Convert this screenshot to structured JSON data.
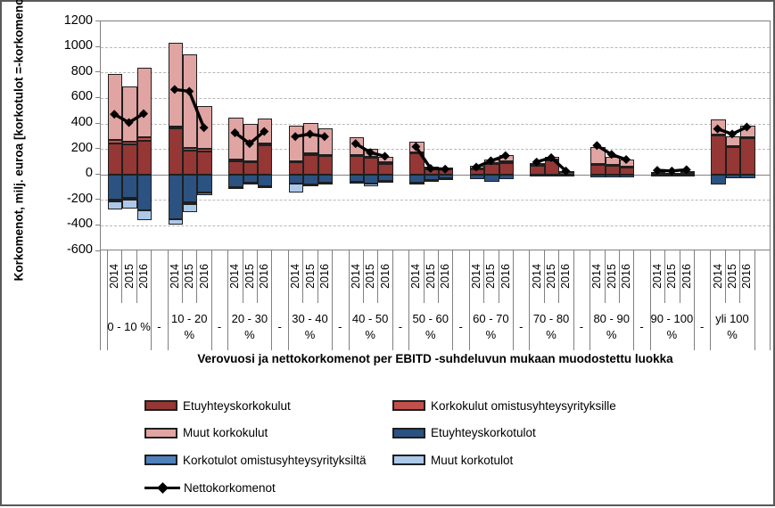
{
  "chart_data": {
    "type": "bar",
    "subtype": "stacked-bars-with-net-line",
    "title": "",
    "ylabel": "Korkomenot, milj. euroa [korkotulot =-korkomenot]",
    "xlabel": "Verovuosi ja nettokorkomenot per EBITD -suhdeluvun mukaan muodostettu luokka",
    "ylim": [
      -600,
      1200
    ],
    "ytick_step": 200,
    "yticks": [
      1200,
      1000,
      800,
      600,
      400,
      200,
      0,
      -200,
      -400,
      -600
    ],
    "grid": "horizontal-dashed",
    "years": [
      "2014",
      "2015",
      "2016"
    ],
    "separator_label": "-",
    "categories": [
      "0 - 10 %",
      "10 - 20 %",
      "20 - 30 %",
      "30 - 40 %",
      "40 - 50 %",
      "50 - 60 %",
      "60 - 70 %",
      "70 - 80 %",
      "80 - 90 %",
      "90 - 100 %",
      "yli 100 %"
    ],
    "colors": {
      "etuyhteyskorkokulut": "#943735",
      "korkokulut_omistus": "#C0504D",
      "muut_korkokulut": "#E0A4A2",
      "etuyhteyskorkotulot": "#2B5280",
      "korkotulot_omistus": "#4F81BD",
      "muut_korkotulot": "#ADC9E9",
      "nettokorkomenot": "#000000"
    },
    "stack_order_positive": [
      "etuyhteyskorkokulut",
      "korkokulut_omistus",
      "muut_korkokulut"
    ],
    "stack_order_negative": [
      "etuyhteyskorkotulot",
      "korkotulot_omistus",
      "muut_korkotulot"
    ],
    "legend": {
      "left_column": [
        {
          "field": "etuyhteyskorkokulut",
          "label": "Etuyhteyskorkokulut",
          "type": "box",
          "color": "#943735"
        },
        {
          "field": "muut_korkokulut",
          "label": "Muut korkokulut",
          "type": "box",
          "color": "#E0A4A2"
        },
        {
          "field": "korkotulot_omistus",
          "label": "Korkotulot omistusyhteysyrityksiltä",
          "type": "box",
          "color": "#4F81BD"
        },
        {
          "field": "nettokorkomenot",
          "label": "Nettokorkomenot",
          "type": "line",
          "color": "#000000"
        }
      ],
      "right_column": [
        {
          "field": "korkokulut_omistus",
          "label": "Korkokulut omistusyhteysyrityksille",
          "type": "box",
          "color": "#C0504D"
        },
        {
          "field": "etuyhteyskorkotulot",
          "label": "Etuyhteyskorkotulot",
          "type": "box",
          "color": "#2B5280"
        },
        {
          "field": "muut_korkotulot",
          "label": "Muut korkotulot",
          "type": "box",
          "color": "#ADC9E9"
        }
      ]
    },
    "groups": [
      {
        "category": "0 - 10 %",
        "bars": [
          {
            "year": "2014",
            "etuyhteyskorkokulut": 240,
            "korkokulut_omistus": 30,
            "muut_korkokulut": 520,
            "etuyhteyskorkotulot": -200,
            "korkotulot_omistus": -15,
            "muut_korkotulot": -60,
            "nettokorkomenot": 465
          },
          {
            "year": "2015",
            "etuyhteyskorkokulut": 235,
            "korkokulut_omistus": 20,
            "muut_korkokulut": 435,
            "etuyhteyskorkotulot": -185,
            "korkotulot_omistus": -10,
            "muut_korkotulot": -70,
            "nettokorkomenot": 400
          },
          {
            "year": "2016",
            "etuyhteyskorkokulut": 265,
            "korkokulut_omistus": 30,
            "muut_korkokulut": 545,
            "etuyhteyskorkotulot": -280,
            "korkotulot_omistus": 0,
            "muut_korkotulot": -80,
            "nettokorkomenot": 470
          }
        ]
      },
      {
        "category": "10 - 20 %",
        "bars": [
          {
            "year": "2014",
            "etuyhteyskorkokulut": 365,
            "korkokulut_omistus": 10,
            "muut_korkokulut": 660,
            "etuyhteyskorkotulot": -350,
            "korkotulot_omistus": 0,
            "muut_korkotulot": -45,
            "nettokorkomenot": 660
          },
          {
            "year": "2015",
            "etuyhteyskorkokulut": 185,
            "korkokulut_omistus": 20,
            "muut_korkokulut": 735,
            "etuyhteyskorkotulot": -220,
            "korkotulot_omistus": -10,
            "muut_korkotulot": -65,
            "nettokorkomenot": 645
          },
          {
            "year": "2016",
            "etuyhteyskorkokulut": 180,
            "korkokulut_omistus": 20,
            "muut_korkokulut": 335,
            "etuyhteyskorkotulot": -140,
            "korkotulot_omistus": -20,
            "muut_korkotulot": 0,
            "nettokorkomenot": 360
          }
        ]
      },
      {
        "category": "20 - 30 %",
        "bars": [
          {
            "year": "2014",
            "etuyhteyskorkokulut": 105,
            "korkokulut_omistus": 10,
            "muut_korkokulut": 330,
            "etuyhteyskorkotulot": -100,
            "korkotulot_omistus": 0,
            "muut_korkotulot": -15,
            "nettokorkomenot": 320
          },
          {
            "year": "2015",
            "etuyhteyskorkokulut": 95,
            "korkokulut_omistus": 10,
            "muut_korkokulut": 290,
            "etuyhteyskorkotulot": -65,
            "korkotulot_omistus": 0,
            "muut_korkotulot": -10,
            "nettokorkomenot": 235
          },
          {
            "year": "2016",
            "etuyhteyskorkokulut": 230,
            "korkokulut_omistus": 10,
            "muut_korkokulut": 195,
            "etuyhteyskorkotulot": -90,
            "korkotulot_omistus": 0,
            "muut_korkotulot": -10,
            "nettokorkomenot": 330
          }
        ]
      },
      {
        "category": "30 - 40 %",
        "bars": [
          {
            "year": "2014",
            "etuyhteyskorkokulut": 95,
            "korkokulut_omistus": 10,
            "muut_korkokulut": 280,
            "etuyhteyskorkotulot": -75,
            "korkotulot_omistus": 0,
            "muut_korkotulot": -70,
            "nettokorkomenot": 290
          },
          {
            "year": "2015",
            "etuyhteyskorkokulut": 155,
            "korkokulut_omistus": 10,
            "muut_korkokulut": 240,
            "etuyhteyskorkotulot": -80,
            "korkotulot_omistus": 0,
            "muut_korkotulot": -15,
            "nettokorkomenot": 310
          },
          {
            "year": "2016",
            "etuyhteyskorkokulut": 145,
            "korkokulut_omistus": 10,
            "muut_korkokulut": 210,
            "etuyhteyskorkotulot": -65,
            "korkotulot_omistus": 0,
            "muut_korkotulot": -10,
            "nettokorkomenot": 290
          }
        ]
      },
      {
        "category": "40 - 50 %",
        "bars": [
          {
            "year": "2014",
            "etuyhteyskorkokulut": 145,
            "korkokulut_omistus": 10,
            "muut_korkokulut": 135,
            "etuyhteyskorkotulot": -55,
            "korkotulot_omistus": 0,
            "muut_korkotulot": -20,
            "nettokorkomenot": 235
          },
          {
            "year": "2015",
            "etuyhteyskorkokulut": 130,
            "korkokulut_omistus": 10,
            "muut_korkokulut": 60,
            "etuyhteyskorkotulot": -70,
            "korkotulot_omistus": 0,
            "muut_korkotulot": -20,
            "nettokorkomenot": 165
          },
          {
            "year": "2016",
            "etuyhteyskorkokulut": 85,
            "korkokulut_omistus": 10,
            "muut_korkokulut": 45,
            "etuyhteyskorkotulot": -50,
            "korkotulot_omistus": 0,
            "muut_korkotulot": -15,
            "nettokorkomenot": 135
          }
        ]
      },
      {
        "category": "50 - 60 %",
        "bars": [
          {
            "year": "2014",
            "etuyhteyskorkokulut": 165,
            "korkokulut_omistus": 10,
            "muut_korkokulut": 80,
            "etuyhteyskorkotulot": -65,
            "korkotulot_omistus": 0,
            "muut_korkotulot": -15,
            "nettokorkomenot": 210
          },
          {
            "year": "2015",
            "etuyhteyskorkokulut": 45,
            "korkokulut_omistus": 5,
            "muut_korkokulut": 10,
            "etuyhteyskorkotulot": -45,
            "korkotulot_omistus": 0,
            "muut_korkotulot": -10,
            "nettokorkomenot": 40
          },
          {
            "year": "2016",
            "etuyhteyskorkokulut": 40,
            "korkokulut_omistus": 5,
            "muut_korkokulut": 10,
            "etuyhteyskorkotulot": -30,
            "korkotulot_omistus": 0,
            "muut_korkotulot": -10,
            "nettokorkomenot": 35
          }
        ]
      },
      {
        "category": "60 - 70 %",
        "bars": [
          {
            "year": "2014",
            "etuyhteyskorkokulut": 45,
            "korkokulut_omistus": 5,
            "muut_korkokulut": 15,
            "etuyhteyskorkotulot": -35,
            "korkotulot_omistus": 0,
            "muut_korkotulot": 0,
            "nettokorkomenot": 50
          },
          {
            "year": "2015",
            "etuyhteyskorkokulut": 80,
            "korkokulut_omistus": 10,
            "muut_korkokulut": 30,
            "etuyhteyskorkotulot": -55,
            "korkotulot_omistus": 0,
            "muut_korkotulot": 0,
            "nettokorkomenot": 100
          },
          {
            "year": "2016",
            "etuyhteyskorkokulut": 90,
            "korkokulut_omistus": 10,
            "muut_korkokulut": 50,
            "etuyhteyskorkotulot": -35,
            "korkotulot_omistus": 0,
            "muut_korkotulot": 0,
            "nettokorkomenot": 140
          }
        ]
      },
      {
        "category": "70 - 80 %",
        "bars": [
          {
            "year": "2014",
            "etuyhteyskorkokulut": 70,
            "korkokulut_omistus": 5,
            "muut_korkokulut": 15,
            "etuyhteyskorkotulot": -15,
            "korkotulot_omistus": 0,
            "muut_korkotulot": 0,
            "nettokorkomenot": 90
          },
          {
            "year": "2015",
            "etuyhteyskorkokulut": 110,
            "korkokulut_omistus": 5,
            "muut_korkokulut": 20,
            "etuyhteyskorkotulot": -15,
            "korkotulot_omistus": 0,
            "muut_korkotulot": 0,
            "nettokorkomenot": 125
          },
          {
            "year": "2016",
            "etuyhteyskorkokulut": 20,
            "korkokulut_omistus": 0,
            "muut_korkokulut": 5,
            "etuyhteyskorkotulot": -10,
            "korkotulot_omistus": 0,
            "muut_korkotulot": 0,
            "nettokorkomenot": 20
          }
        ]
      },
      {
        "category": "80 - 90 %",
        "bars": [
          {
            "year": "2014",
            "etuyhteyskorkokulut": 80,
            "korkokulut_omistus": 5,
            "muut_korkokulut": 130,
            "etuyhteyskorkotulot": -20,
            "korkotulot_omistus": 0,
            "muut_korkotulot": 0,
            "nettokorkomenot": 220
          },
          {
            "year": "2015",
            "etuyhteyskorkokulut": 70,
            "korkokulut_omistus": 5,
            "muut_korkokulut": 65,
            "etuyhteyskorkotulot": -20,
            "korkotulot_omistus": 0,
            "muut_korkotulot": 0,
            "nettokorkomenot": 150
          },
          {
            "year": "2016",
            "etuyhteyskorkokulut": 55,
            "korkokulut_omistus": 5,
            "muut_korkokulut": 60,
            "etuyhteyskorkotulot": -20,
            "korkotulot_omistus": 0,
            "muut_korkotulot": 0,
            "nettokorkomenot": 110
          }
        ]
      },
      {
        "category": "90 - 100 %",
        "bars": [
          {
            "year": "2014",
            "etuyhteyskorkokulut": 15,
            "korkokulut_omistus": 0,
            "muut_korkokulut": 5,
            "etuyhteyskorkotulot": -10,
            "korkotulot_omistus": 0,
            "muut_korkotulot": 0,
            "nettokorkomenot": 25
          },
          {
            "year": "2015",
            "etuyhteyskorkokulut": 10,
            "korkokulut_omistus": 0,
            "muut_korkokulut": 5,
            "etuyhteyskorkotulot": -10,
            "korkotulot_omistus": 0,
            "muut_korkotulot": 0,
            "nettokorkomenot": 20
          },
          {
            "year": "2016",
            "etuyhteyskorkokulut": 15,
            "korkokulut_omistus": 0,
            "muut_korkokulut": 10,
            "etuyhteyskorkotulot": -10,
            "korkotulot_omistus": 0,
            "muut_korkotulot": 0,
            "nettokorkomenot": 30
          }
        ]
      },
      {
        "category": "yli 100 %",
        "bars": [
          {
            "year": "2014",
            "etuyhteyskorkokulut": 305,
            "korkokulut_omistus": 10,
            "muut_korkokulut": 115,
            "etuyhteyskorkotulot": -80,
            "korkotulot_omistus": 0,
            "muut_korkotulot": 0,
            "nettokorkomenot": 350
          },
          {
            "year": "2015",
            "etuyhteyskorkokulut": 215,
            "korkokulut_omistus": 10,
            "muut_korkokulut": 75,
            "etuyhteyskorkotulot": -30,
            "korkotulot_omistus": 0,
            "muut_korkotulot": 0,
            "nettokorkomenot": 310
          },
          {
            "year": "2016",
            "etuyhteyskorkokulut": 285,
            "korkokulut_omistus": 10,
            "muut_korkokulut": 85,
            "etuyhteyskorkotulot": -30,
            "korkotulot_omistus": 0,
            "muut_korkotulot": 0,
            "nettokorkomenot": 365
          }
        ]
      }
    ]
  }
}
